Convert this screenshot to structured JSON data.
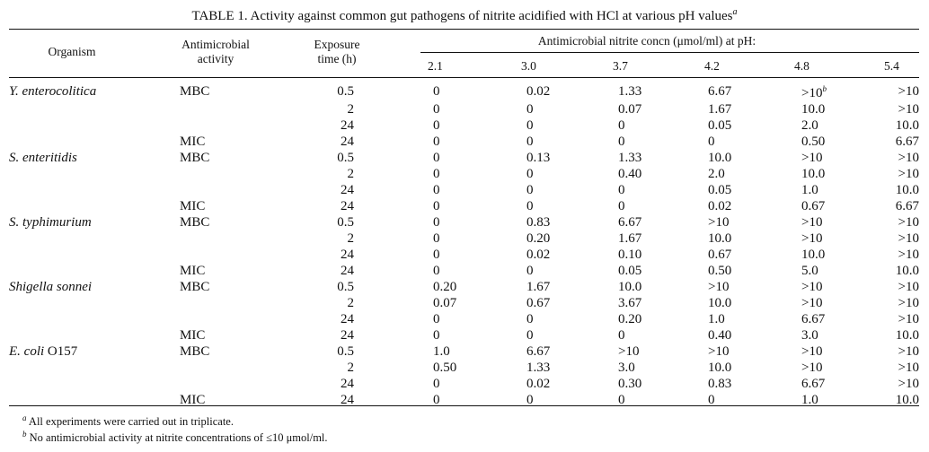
{
  "caption": {
    "text": "TABLE 1. Activity against common gut pathogens of nitrite acidified with HCl at various pH values",
    "footnote_mark": "a"
  },
  "header": {
    "organism": "Organism",
    "activity_line1": "Antimicrobial",
    "activity_line2": "activity",
    "exposure_line1": "Exposure",
    "exposure_line2": "time (h)",
    "concn": "Antimicrobial nitrite concn (μmol/ml) at pH:",
    "ph_values": [
      "2.1",
      "3.0",
      "3.7",
      "4.2",
      "4.8",
      "5.4"
    ]
  },
  "rows": [
    {
      "organism": "Y. enterocolitica",
      "activity": "MBC",
      "time": "0.5",
      "values": [
        "0",
        "0.02",
        "1.33",
        "6.67",
        ">10",
        ">10"
      ],
      "sup": "b"
    },
    {
      "organism": "",
      "activity": "",
      "time": "2",
      "values": [
        "0",
        "0",
        "0.07",
        "1.67",
        "10.0",
        ">10"
      ]
    },
    {
      "organism": "",
      "activity": "",
      "time": "24",
      "values": [
        "0",
        "0",
        "0",
        "0.05",
        "2.0",
        "10.0"
      ]
    },
    {
      "organism": "",
      "activity": "MIC",
      "time": "24",
      "values": [
        "0",
        "0",
        "0",
        "0",
        "0.50",
        "6.67"
      ]
    },
    {
      "organism": "S. enteritidis",
      "activity": "MBC",
      "time": "0.5",
      "values": [
        "0",
        "0.13",
        "1.33",
        "10.0",
        ">10",
        ">10"
      ]
    },
    {
      "organism": "",
      "activity": "",
      "time": "2",
      "values": [
        "0",
        "0",
        "0.40",
        "2.0",
        "10.0",
        ">10"
      ]
    },
    {
      "organism": "",
      "activity": "",
      "time": "24",
      "values": [
        "0",
        "0",
        "0",
        "0.05",
        "1.0",
        "10.0"
      ]
    },
    {
      "organism": "",
      "activity": "MIC",
      "time": "24",
      "values": [
        "0",
        "0",
        "0",
        "0.02",
        "0.67",
        "6.67"
      ]
    },
    {
      "organism": "S. typhimurium",
      "activity": "MBC",
      "time": "0.5",
      "values": [
        "0",
        "0.83",
        "6.67",
        ">10",
        ">10",
        ">10"
      ]
    },
    {
      "organism": "",
      "activity": "",
      "time": "2",
      "values": [
        "0",
        "0.20",
        "1.67",
        "10.0",
        ">10",
        ">10"
      ]
    },
    {
      "organism": "",
      "activity": "",
      "time": "24",
      "values": [
        "0",
        "0.02",
        "0.10",
        "0.67",
        "10.0",
        ">10"
      ]
    },
    {
      "organism": "",
      "activity": "MIC",
      "time": "24",
      "values": [
        "0",
        "0",
        "0.05",
        "0.50",
        "5.0",
        "10.0"
      ]
    },
    {
      "organism": "Shigella sonnei",
      "activity": "MBC",
      "time": "0.5",
      "values": [
        "0.20",
        "1.67",
        "10.0",
        ">10",
        ">10",
        ">10"
      ]
    },
    {
      "organism": "",
      "activity": "",
      "time": "2",
      "values": [
        "0.07",
        "0.67",
        "3.67",
        "10.0",
        ">10",
        ">10"
      ]
    },
    {
      "organism": "",
      "activity": "",
      "time": "24",
      "values": [
        "0",
        "0",
        "0.20",
        "1.0",
        "6.67",
        ">10"
      ]
    },
    {
      "organism": "",
      "activity": "MIC",
      "time": "24",
      "values": [
        "0",
        "0",
        "0",
        "0.40",
        "3.0",
        "10.0"
      ]
    },
    {
      "organism": "E. coli",
      "organism_suffix": " O157",
      "activity": "MBC",
      "time": "0.5",
      "values": [
        "1.0",
        "6.67",
        ">10",
        ">10",
        ">10",
        ">10"
      ]
    },
    {
      "organism": "",
      "activity": "",
      "time": "2",
      "values": [
        "0.50",
        "1.33",
        "3.0",
        "10.0",
        ">10",
        ">10"
      ]
    },
    {
      "organism": "",
      "activity": "",
      "time": "24",
      "values": [
        "0",
        "0.02",
        "0.30",
        "0.83",
        "6.67",
        ">10"
      ]
    },
    {
      "organism": "",
      "activity": "MIC",
      "time": "24",
      "values": [
        "0",
        "0",
        "0",
        "0",
        "1.0",
        "10.0"
      ]
    }
  ],
  "footnotes": [
    {
      "mark": "a",
      "text": " All experiments were carried out in triplicate."
    },
    {
      "mark": "b",
      "text": " No antimicrobial activity at nitrite concentrations of ≤10 μmol/ml."
    }
  ]
}
